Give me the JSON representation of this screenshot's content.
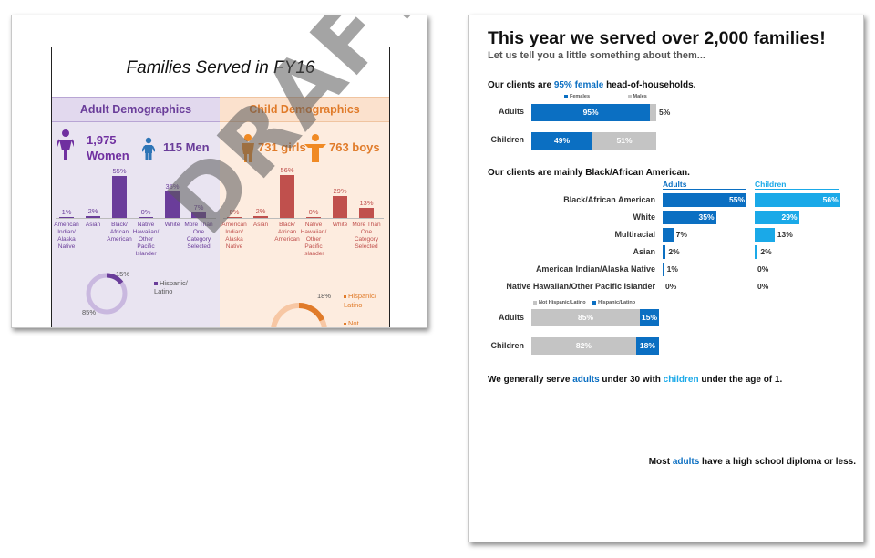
{
  "left_slide": {
    "title": "Families Served in FY16",
    "watermark": "DRAFT",
    "adult": {
      "header": "Adult Demographics",
      "women_count": "1,975",
      "women_label": "Women",
      "men_label": "115 Men",
      "chart_data": {
        "type": "bar",
        "categories": [
          "American Indian/ Alaska Native",
          "Asian",
          "Black/ African American",
          "Native Hawaiian/ Other Pacific Islander",
          "White",
          "More Than One Category Selected"
        ],
        "values": [
          1,
          2,
          55,
          0,
          35,
          7
        ],
        "labels": [
          "1%",
          "2%",
          "55%",
          "0%",
          "35%",
          "7%"
        ],
        "ylim": [
          0,
          60
        ],
        "color": "#6a3d9a"
      },
      "donut": {
        "hispanic": 15,
        "not_hispanic": 85,
        "hispanic_label": "15%",
        "not_hispanic_label": "85%",
        "legend": "Hispanic/ Latino"
      }
    },
    "child": {
      "header": "Child Demographics",
      "girls_label": "731 girls",
      "boys_label": "763 boys",
      "chart_data": {
        "type": "bar",
        "categories": [
          "American Indian/ Alaska Native",
          "Asian",
          "Black/ African American",
          "Native Hawaiian/ Other Pacific Islander",
          "White",
          "More Than One Category Selected"
        ],
        "values": [
          0,
          2,
          56,
          0,
          29,
          13
        ],
        "labels": [
          "0%",
          "2%",
          "56%",
          "0%",
          "29%",
          "13%"
        ],
        "ylim": [
          0,
          60
        ],
        "color": "#c0504d"
      },
      "donut": {
        "hispanic": 18,
        "hispanic_label": "18%",
        "legend": "Hispanic/ Latino",
        "legend2": "Not"
      }
    }
  },
  "right_page": {
    "title": "This year we served over 2,000 families!",
    "subtitle": "Let us tell you a little something about them...",
    "gender": {
      "heading_pre": "Our clients are ",
      "heading_hl": "95% female",
      "heading_post": " head-of-households.",
      "legend": [
        "Females",
        "Males"
      ],
      "chart_data": {
        "type": "bar",
        "categories": [
          "Adults",
          "Children"
        ],
        "series": [
          {
            "name": "Females",
            "values": [
              95,
              49
            ],
            "labels": [
              "95%",
              "49%"
            ]
          },
          {
            "name": "Males",
            "values": [
              5,
              51
            ],
            "labels": [
              "5%",
              "51%"
            ]
          }
        ]
      }
    },
    "race": {
      "heading": "Our clients are mainly Black/African American.",
      "col_adults": "Adults",
      "col_children": "Children",
      "chart_data": {
        "type": "bar",
        "categories": [
          "Black/African American",
          "White",
          "Multiracial",
          "Asian",
          "American Indian/Alaska Native",
          "Native Hawaiian/Other Pacific Islander"
        ],
        "series": [
          {
            "name": "Adults",
            "values": [
              55,
              35,
              7,
              2,
              1,
              0
            ],
            "labels": [
              "55%",
              "35%",
              "7%",
              "2%",
              "1%",
              "0%"
            ]
          },
          {
            "name": "Children",
            "values": [
              56,
              29,
              13,
              2,
              0,
              0
            ],
            "labels": [
              "56%",
              "29%",
              "13%",
              "2%",
              "0%",
              "0%"
            ]
          }
        ]
      }
    },
    "ethnicity": {
      "legend": [
        "Not Hispanic/Latino",
        "Hispanic/Latino"
      ],
      "chart_data": {
        "type": "bar",
        "categories": [
          "Adults",
          "Children"
        ],
        "series": [
          {
            "name": "Not Hispanic/Latino",
            "values": [
              85,
              82
            ],
            "labels": [
              "85%",
              "82%"
            ]
          },
          {
            "name": "Hispanic/Latino",
            "values": [
              15,
              18
            ],
            "labels": [
              "15%",
              "18%"
            ]
          }
        ]
      }
    },
    "age_line": {
      "p1": "We generally serve ",
      "p2": "adults",
      "p3": " under 30 with ",
      "p4": "children",
      "p5": " under the age of 1."
    },
    "edu_line": {
      "p1": "Most ",
      "p2": "adults",
      "p3": " have a high school diploma or less."
    },
    "colors": {
      "dark_blue": "#0b6fc2",
      "light_blue": "#1aa9e8",
      "gray": "#c4c4c4"
    }
  }
}
